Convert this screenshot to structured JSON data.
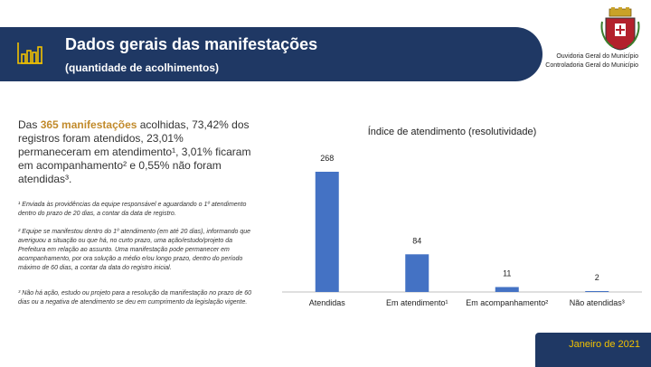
{
  "header": {
    "title": "Dados gerais das manifestações",
    "subtitle": "(quantidade de acolhimentos)",
    "org_line1": "Ouvidoria Geral do Município",
    "org_line2": "Controladoria Geral do Município",
    "icon": "bar-chart-icon",
    "crest": "municipal-crest-icon",
    "colors": {
      "banner": "#1f3864",
      "highlight": "#c28b2c",
      "bar": "#4472c4",
      "footer_text": "#f2c200"
    }
  },
  "intro": {
    "prefix": "Das ",
    "highlight": "365 manifestações",
    "rest": " acolhidas, 73,42% dos registros foram atendidos, 23,01% permaneceram em atendimento¹, 3,01% ficaram em acompanhamento² e 0,55% não foram atendidas³."
  },
  "notes": [
    "¹ Enviada às providências da equipe responsável e aguardando o 1º atendimento dentro do prazo de 20 dias, a contar da data de registro.",
    "² Equipe se manifestou dentro do 1º atendimento (em até 20 dias), informando que averiguou a situação ou que há, no curto prazo, uma ação/estudo/projeto da Prefeitura em relação ao assunto. Uma manifestação pode permanecer em acompanhamento, por ora solução a médio e/ou longo prazo, dentro do período máximo de 60 dias, a contar da data do registro inicial.",
    "³ Não há ação, estudo ou projeto para a resolução da manifestação no prazo de 60 dias ou a negativa de atendimento se deu em cumprimento da legislação vigente."
  ],
  "chart_data": {
    "type": "bar",
    "title": "Índice de atendimento (resolutividade)",
    "categories": [
      "Atendidas",
      "Em atendimento¹",
      "Em acompanhamento²",
      "Não atendidas³"
    ],
    "values": [
      268,
      84,
      11,
      2
    ],
    "ylim": [
      0,
      268
    ],
    "grid": false,
    "legend": "none",
    "color": "#4472c4"
  },
  "footer": {
    "date": "Janeiro de 2021"
  }
}
